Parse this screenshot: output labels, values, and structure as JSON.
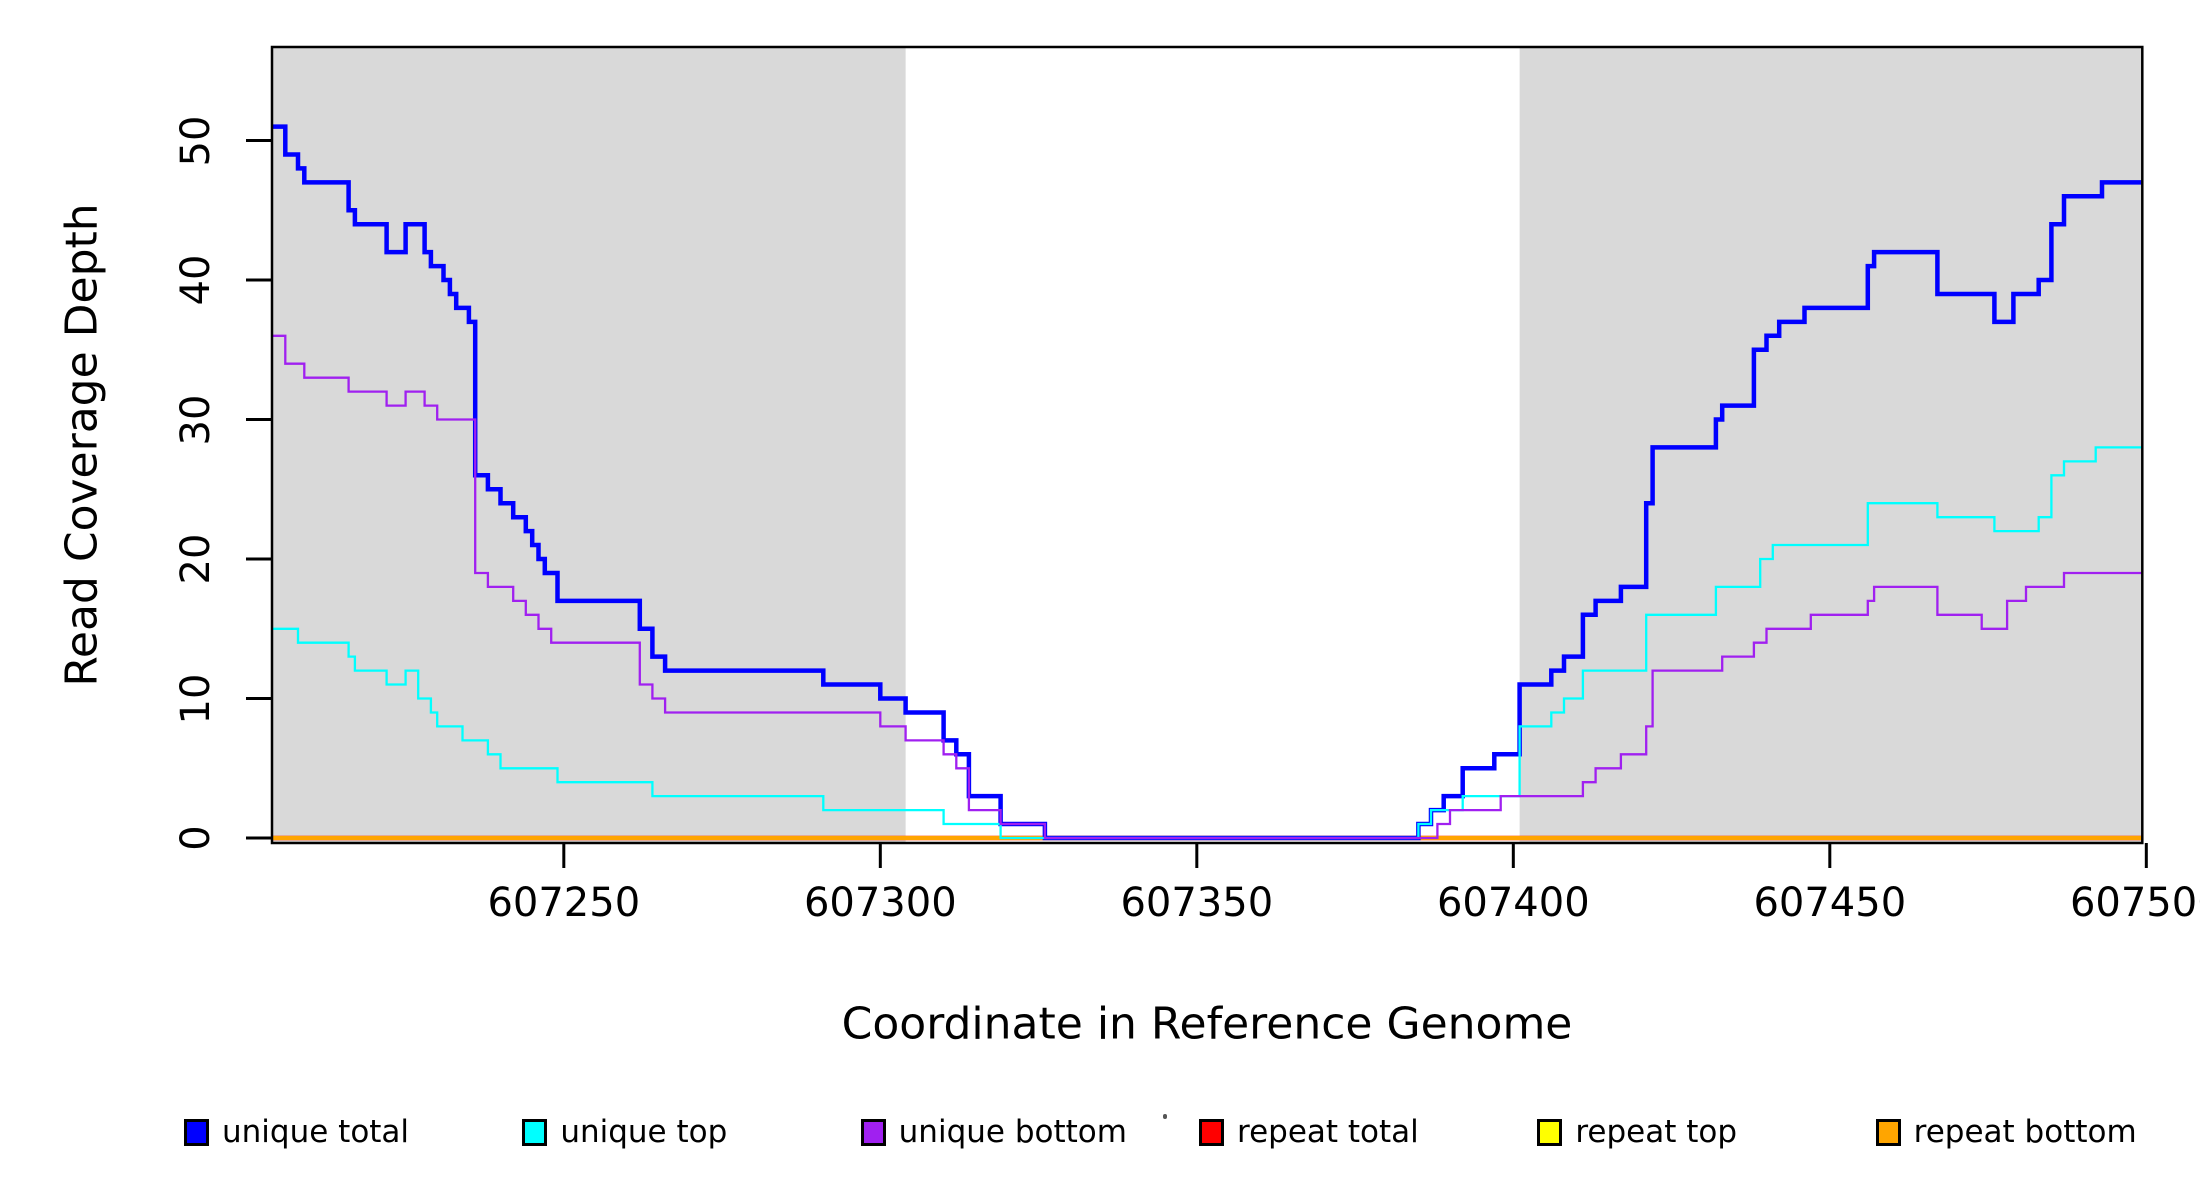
{
  "chart_data": {
    "type": "line",
    "subtype": "step",
    "title": "",
    "xlabel": "Coordinate in Reference Genome",
    "ylabel": "Read Coverage Depth",
    "x_range": [
      607203.9,
      607499.3
    ],
    "y_range": [
      0,
      56
    ],
    "grid": "off",
    "panel_color": "#d9d9d9",
    "shaded_regions": [
      {
        "name": "left-flank",
        "x0": 607203.9,
        "x1": 607304
      },
      {
        "name": "right-flank",
        "x0": 607401,
        "x1": 607499.3
      }
    ],
    "x_ticks": [
      607250,
      607300,
      607350,
      607400,
      607450,
      607500
    ],
    "x_tick_labels": [
      "607250",
      "607300",
      "607350",
      "607400",
      "607450",
      "607500"
    ],
    "y_ticks": [
      0,
      10,
      20,
      30,
      40,
      50
    ],
    "y_tick_labels": [
      "0",
      "10",
      "20",
      "30",
      "40",
      "50"
    ],
    "series": [
      {
        "name": "repeat total",
        "color": "#ff0000",
        "width": 4.5,
        "points": [
          [
            607203.9,
            0
          ]
        ]
      },
      {
        "name": "repeat top",
        "color": "#ffff00",
        "width": 3.5,
        "points": [
          [
            607203.9,
            0
          ]
        ]
      },
      {
        "name": "repeat bottom",
        "color": "#ffa500",
        "width": 4.2,
        "points": [
          [
            607203.9,
            0
          ]
        ]
      },
      {
        "name": "unique total",
        "color": "#0000ff",
        "width": 4.5,
        "points": [
          [
            607203.9,
            51
          ],
          [
            607206,
            49
          ],
          [
            607208,
            48
          ],
          [
            607209,
            47
          ],
          [
            607216,
            45
          ],
          [
            607217,
            44
          ],
          [
            607222,
            42
          ],
          [
            607225,
            44
          ],
          [
            607228,
            42
          ],
          [
            607229,
            41
          ],
          [
            607231,
            40
          ],
          [
            607232,
            39
          ],
          [
            607233,
            38
          ],
          [
            607235,
            37
          ],
          [
            607236,
            26
          ],
          [
            607238,
            25
          ],
          [
            607240,
            24
          ],
          [
            607242,
            23
          ],
          [
            607244,
            22
          ],
          [
            607245,
            21
          ],
          [
            607246,
            20
          ],
          [
            607247,
            19
          ],
          [
            607249,
            17
          ],
          [
            607262,
            15
          ],
          [
            607264,
            13
          ],
          [
            607266,
            12
          ],
          [
            607291,
            11
          ],
          [
            607300,
            10
          ],
          [
            607304,
            9
          ],
          [
            607310,
            7
          ],
          [
            607312,
            6
          ],
          [
            607314,
            3
          ],
          [
            607319,
            1
          ],
          [
            607326,
            0
          ],
          [
            607385,
            1
          ],
          [
            607387,
            2
          ],
          [
            607389,
            3
          ],
          [
            607392,
            5
          ],
          [
            607397,
            6
          ],
          [
            607401,
            11
          ],
          [
            607406,
            12
          ],
          [
            607408,
            13
          ],
          [
            607411,
            16
          ],
          [
            607413,
            17
          ],
          [
            607417,
            18
          ],
          [
            607421,
            24
          ],
          [
            607422,
            28
          ],
          [
            607432,
            30
          ],
          [
            607433,
            31
          ],
          [
            607438,
            35
          ],
          [
            607440,
            36
          ],
          [
            607442,
            37
          ],
          [
            607446,
            38
          ],
          [
            607456,
            41
          ],
          [
            607457,
            42
          ],
          [
            607467,
            39
          ],
          [
            607476,
            37
          ],
          [
            607479,
            39
          ],
          [
            607483,
            40
          ],
          [
            607485,
            44
          ],
          [
            607487,
            46
          ],
          [
            607493,
            47
          ]
        ]
      },
      {
        "name": "unique top",
        "color": "#00ffff",
        "width": 2.3,
        "points": [
          [
            607203.9,
            15
          ],
          [
            607208,
            14
          ],
          [
            607216,
            13
          ],
          [
            607217,
            12
          ],
          [
            607222,
            11
          ],
          [
            607225,
            12
          ],
          [
            607227,
            10
          ],
          [
            607229,
            9
          ],
          [
            607230,
            8
          ],
          [
            607234,
            7
          ],
          [
            607238,
            6
          ],
          [
            607240,
            5
          ],
          [
            607249,
            4
          ],
          [
            607264,
            3
          ],
          [
            607291,
            2
          ],
          [
            607310,
            1
          ],
          [
            607319,
            0
          ],
          [
            607385,
            1
          ],
          [
            607387,
            2
          ],
          [
            607392,
            3
          ],
          [
            607401,
            8
          ],
          [
            607406,
            9
          ],
          [
            607408,
            10
          ],
          [
            607411,
            12
          ],
          [
            607421,
            16
          ],
          [
            607432,
            18
          ],
          [
            607439,
            20
          ],
          [
            607441,
            21
          ],
          [
            607456,
            24
          ],
          [
            607467,
            23
          ],
          [
            607476,
            22
          ],
          [
            607483,
            23
          ],
          [
            607485,
            26
          ],
          [
            607487,
            27
          ],
          [
            607492,
            28
          ]
        ]
      },
      {
        "name": "unique bottom",
        "color": "#a020f0",
        "width": 2.3,
        "points": [
          [
            607203.9,
            36
          ],
          [
            607206,
            34
          ],
          [
            607209,
            33
          ],
          [
            607216,
            32
          ],
          [
            607222,
            31
          ],
          [
            607225,
            32
          ],
          [
            607228,
            31
          ],
          [
            607230,
            30
          ],
          [
            607236,
            19
          ],
          [
            607238,
            18
          ],
          [
            607242,
            17
          ],
          [
            607244,
            16
          ],
          [
            607246,
            15
          ],
          [
            607248,
            14
          ],
          [
            607262,
            11
          ],
          [
            607264,
            10
          ],
          [
            607266,
            9
          ],
          [
            607300,
            8
          ],
          [
            607304,
            7
          ],
          [
            607310,
            6
          ],
          [
            607312,
            5
          ],
          [
            607314,
            2
          ],
          [
            607319,
            1
          ],
          [
            607326,
            0
          ],
          [
            607388,
            1
          ],
          [
            607390,
            2
          ],
          [
            607398,
            3
          ],
          [
            607411,
            4
          ],
          [
            607413,
            5
          ],
          [
            607417,
            6
          ],
          [
            607421,
            8
          ],
          [
            607422,
            12
          ],
          [
            607433,
            13
          ],
          [
            607438,
            14
          ],
          [
            607440,
            15
          ],
          [
            607447,
            16
          ],
          [
            607456,
            17
          ],
          [
            607457,
            18
          ],
          [
            607467,
            16
          ],
          [
            607474,
            15
          ],
          [
            607478,
            17
          ],
          [
            607481,
            18
          ],
          [
            607487,
            19
          ]
        ]
      }
    ]
  },
  "legend": {
    "items": [
      {
        "label": "unique total",
        "color": "#0000ff"
      },
      {
        "label": "unique top",
        "color": "#00ffff"
      },
      {
        "label": "unique bottom",
        "color": "#a020f0"
      },
      {
        "label": "repeat total",
        "color": "#ff0000"
      },
      {
        "label": "repeat top",
        "color": "#ffff00"
      },
      {
        "label": "repeat bottom",
        "color": "#ffa500"
      }
    ]
  }
}
